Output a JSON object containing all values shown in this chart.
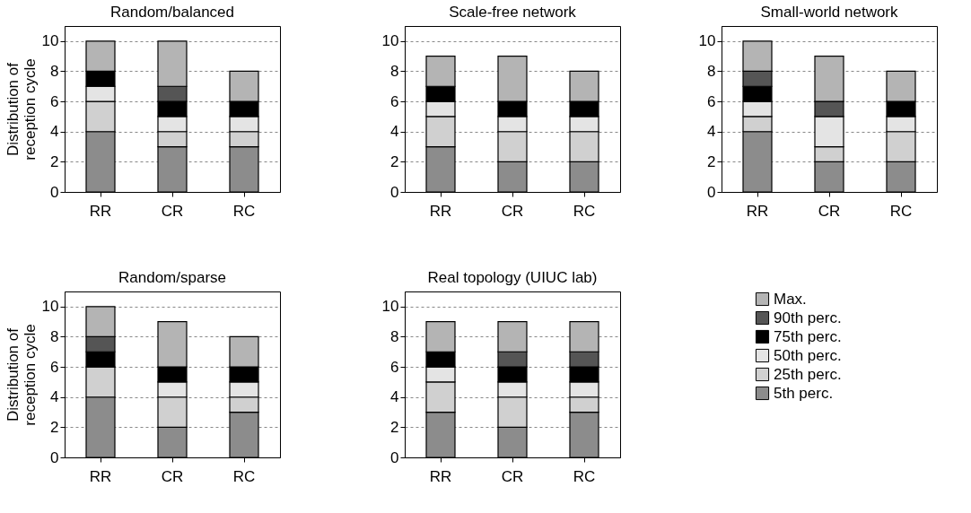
{
  "chart_data": [
    {
      "type": "bar",
      "title": "Random/balanced",
      "ylabel": "Distribution of reception cycle",
      "categories": [
        "RR",
        "CR",
        "RC"
      ],
      "stacked": true,
      "ylim": [
        0,
        11
      ],
      "yticks": [
        0,
        2,
        4,
        6,
        8,
        10
      ],
      "grid": "y",
      "series": [
        {
          "color": "#8c8c8c",
          "values": [
            4,
            3,
            3
          ]
        },
        {
          "color": "#d0d0d0",
          "values": [
            2,
            1,
            1
          ]
        },
        {
          "color": "#e4e4e4",
          "values": [
            1,
            1,
            1
          ]
        },
        {
          "color": "#000000",
          "values": [
            1,
            1,
            1
          ]
        },
        {
          "color": "#555555",
          "values": [
            0,
            1,
            0
          ]
        },
        {
          "color": "#b4b4b4",
          "values": [
            2,
            3,
            2
          ]
        }
      ]
    },
    {
      "type": "bar",
      "title": "Scale-free network",
      "categories": [
        "RR",
        "CR",
        "RC"
      ],
      "stacked": true,
      "ylim": [
        0,
        11
      ],
      "yticks": [
        0,
        2,
        4,
        6,
        8,
        10
      ],
      "grid": "y",
      "series": [
        {
          "color": "#8c8c8c",
          "values": [
            3,
            2,
            2
          ]
        },
        {
          "color": "#d0d0d0",
          "values": [
            2,
            2,
            2
          ]
        },
        {
          "color": "#e4e4e4",
          "values": [
            1,
            1,
            1
          ]
        },
        {
          "color": "#000000",
          "values": [
            1,
            1,
            1
          ]
        },
        {
          "color": "#555555",
          "values": [
            0,
            0,
            0
          ]
        },
        {
          "color": "#b4b4b4",
          "values": [
            2,
            3,
            2
          ]
        }
      ]
    },
    {
      "type": "bar",
      "title": "Small-world network",
      "categories": [
        "RR",
        "CR",
        "RC"
      ],
      "stacked": true,
      "ylim": [
        0,
        11
      ],
      "yticks": [
        0,
        2,
        4,
        6,
        8,
        10
      ],
      "grid": "y",
      "series": [
        {
          "color": "#8c8c8c",
          "values": [
            4,
            2,
            2
          ]
        },
        {
          "color": "#d0d0d0",
          "values": [
            1,
            1,
            2
          ]
        },
        {
          "color": "#e4e4e4",
          "values": [
            1,
            2,
            1
          ]
        },
        {
          "color": "#000000",
          "values": [
            1,
            0,
            1
          ]
        },
        {
          "color": "#555555",
          "values": [
            1,
            1,
            0
          ]
        },
        {
          "color": "#b4b4b4",
          "values": [
            2,
            3,
            2
          ]
        }
      ]
    },
    {
      "type": "bar",
      "title": "Random/sparse",
      "ylabel": "Distribution of reception cycle",
      "categories": [
        "RR",
        "CR",
        "RC"
      ],
      "stacked": true,
      "ylim": [
        0,
        11
      ],
      "yticks": [
        0,
        2,
        4,
        6,
        8,
        10
      ],
      "grid": "y",
      "series": [
        {
          "color": "#8c8c8c",
          "values": [
            4,
            2,
            3
          ]
        },
        {
          "color": "#d0d0d0",
          "values": [
            2,
            2,
            1
          ]
        },
        {
          "color": "#e4e4e4",
          "values": [
            0,
            1,
            1
          ]
        },
        {
          "color": "#000000",
          "values": [
            1,
            1,
            1
          ]
        },
        {
          "color": "#555555",
          "values": [
            1,
            0,
            0
          ]
        },
        {
          "color": "#b4b4b4",
          "values": [
            2,
            3,
            2
          ]
        }
      ]
    },
    {
      "type": "bar",
      "title": "Real topology (UIUC lab)",
      "categories": [
        "RR",
        "CR",
        "RC"
      ],
      "stacked": true,
      "ylim": [
        0,
        11
      ],
      "yticks": [
        0,
        2,
        4,
        6,
        8,
        10
      ],
      "grid": "y",
      "legend": "right",
      "series": [
        {
          "name": "5th perc.",
          "color": "#8c8c8c",
          "values": [
            3,
            2,
            3
          ]
        },
        {
          "name": "25th perc.",
          "color": "#d0d0d0",
          "values": [
            2,
            2,
            1
          ]
        },
        {
          "name": "50th perc.",
          "color": "#e4e4e4",
          "values": [
            1,
            1,
            1
          ]
        },
        {
          "name": "75th perc.",
          "color": "#000000",
          "values": [
            1,
            1,
            1
          ]
        },
        {
          "name": "90th perc.",
          "color": "#555555",
          "values": [
            0,
            1,
            1
          ]
        },
        {
          "name": "Max.",
          "color": "#b4b4b4",
          "values": [
            2,
            2,
            2
          ]
        }
      ]
    }
  ]
}
